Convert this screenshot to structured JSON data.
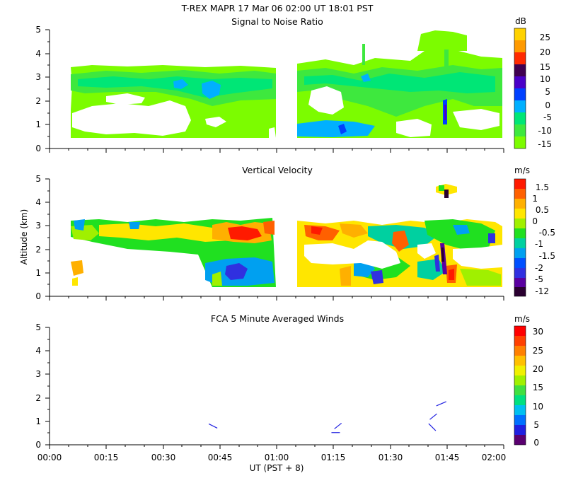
{
  "header": {
    "title": "T-REX   MAPR 17 Mar 06   02:00 UT   18:01   PST"
  },
  "colors": {
    "snr": [
      "#7cfc00",
      "#3ee83e",
      "#00e676",
      "#00b0ff",
      "#0040ff",
      "#4a00c8",
      "#400050",
      "#ff2a00",
      "#ff9a00",
      "#ffd200"
    ],
    "vvel": [
      "#2a0030",
      "#5a00a0",
      "#3030e0",
      "#0050ff",
      "#00a0f0",
      "#00d0a0",
      "#20e020",
      "#a0f000",
      "#ffe600",
      "#ffb000",
      "#ff6000",
      "#ff1a00"
    ],
    "wind": [
      "#5a0070",
      "#2020e0",
      "#0070ff",
      "#00c0f0",
      "#00e080",
      "#40e040",
      "#a0f000",
      "#f0f000",
      "#ffc000",
      "#ff8000",
      "#ff4000",
      "#ff0000"
    ]
  },
  "chart_data": [
    {
      "id": "snr",
      "type": "heatmap",
      "title": "Signal to Noise Ratio",
      "units": "dB",
      "xlabel": "",
      "ylabel": "",
      "xlim_hours": [
        0,
        2
      ],
      "ylim": [
        0,
        5
      ],
      "yticks": [
        "0",
        "1",
        "2",
        "3",
        "4",
        "5"
      ],
      "colorbar_ticks": [
        "25",
        "20",
        "15",
        "10",
        "5",
        "0",
        "-5",
        "-10",
        "-15"
      ],
      "data_gaps": [
        [
          0,
          0.1
        ],
        [
          0.97,
          1.05
        ]
      ],
      "data_top_km": 3.4
    },
    {
      "id": "vvel",
      "type": "heatmap",
      "title": "Vertical Velocity",
      "units": "m/s",
      "xlabel": "",
      "ylabel": "Altitude (km)",
      "xlim_hours": [
        0,
        2
      ],
      "ylim": [
        0,
        5
      ],
      "yticks": [
        "0",
        "1",
        "2",
        "3",
        "4",
        "5"
      ],
      "colorbar_ticks": [
        "1.5",
        "1",
        "0.5",
        "0",
        "-0.5",
        "-1",
        "-1.5",
        "-2",
        "-5",
        "-12"
      ],
      "data_gaps": [
        [
          0,
          0.1
        ],
        [
          0.97,
          1.05
        ]
      ],
      "data_top_km": 3.3
    },
    {
      "id": "wind",
      "type": "scatter",
      "title": "FCA 5 Minute Averaged Winds",
      "units": "m/s",
      "xlabel": "UT  (PST + 8)",
      "ylabel": "",
      "xlim_hours": [
        0,
        2
      ],
      "ylim": [
        0,
        5
      ],
      "yticks": [
        "0",
        "1",
        "2",
        "3",
        "4",
        "5"
      ],
      "xticks": [
        "00:00",
        "00:15",
        "00:30",
        "00:45",
        "01:00",
        "01:15",
        "01:30",
        "01:45",
        "02:00"
      ],
      "colorbar_ticks": [
        "30",
        "25",
        "20",
        "15",
        "10",
        "5",
        "0"
      ],
      "points": [
        {
          "t": 0.72,
          "alt": 0.8
        },
        {
          "t": 1.26,
          "alt": 0.55
        },
        {
          "t": 1.27,
          "alt": 0.8
        },
        {
          "t": 1.685,
          "alt": 0.75
        },
        {
          "t": 1.69,
          "alt": 1.2
        },
        {
          "t": 1.725,
          "alt": 1.75
        }
      ]
    }
  ]
}
